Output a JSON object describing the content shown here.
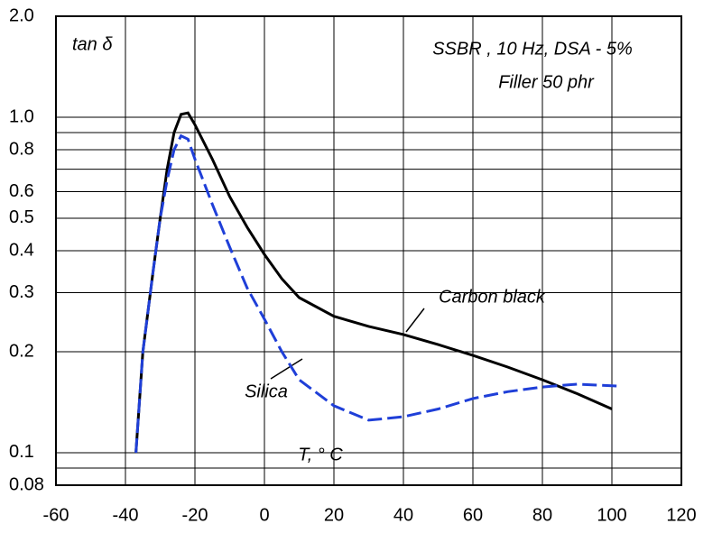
{
  "chart_data": {
    "type": "line",
    "y_label": "tan δ",
    "x_label": "T,  ° C",
    "annotations": [
      "SSBR , 10 Hz, DSA - 5%",
      "Filler 50 phr"
    ],
    "ylog": true,
    "grid": true,
    "xlim": [
      -60,
      120
    ],
    "xticks": [
      -60,
      -40,
      -20,
      0,
      20,
      40,
      60,
      80,
      100,
      120
    ],
    "ylim": [
      0.08,
      2.0
    ],
    "yticks": [
      {
        "value": 2,
        "label": "2.0"
      },
      {
        "value": 1,
        "label": "1.0"
      },
      0.8,
      0.6,
      0.5,
      0.4,
      0.3,
      0.2,
      0.1,
      0.08
    ],
    "yminor": [
      0.9,
      0.7,
      0.09
    ],
    "series": [
      {
        "name": "Carbon black",
        "color": "#000000",
        "dash": false,
        "x": [
          -37,
          -35,
          -32,
          -30,
          -28,
          -26,
          -24,
          -22,
          -20,
          -15,
          -10,
          -5,
          0,
          5,
          10,
          20,
          30,
          40,
          50,
          60,
          70,
          80,
          90,
          100
        ],
        "values": [
          0.1,
          0.2,
          0.35,
          0.5,
          0.7,
          0.9,
          1.02,
          1.03,
          0.95,
          0.75,
          0.58,
          0.47,
          0.39,
          0.33,
          0.29,
          0.255,
          0.238,
          0.225,
          0.21,
          0.195,
          0.18,
          0.165,
          0.15,
          0.135
        ]
      },
      {
        "name": "Silica",
        "color": "#1f3fd8",
        "dash": true,
        "x": [
          -37,
          -35,
          -32,
          -30,
          -28,
          -26,
          -24,
          -22,
          -20,
          -15,
          -10,
          -5,
          0,
          5,
          10,
          20,
          30,
          40,
          50,
          60,
          70,
          80,
          90,
          102
        ],
        "values": [
          0.1,
          0.2,
          0.35,
          0.5,
          0.65,
          0.8,
          0.88,
          0.86,
          0.75,
          0.55,
          0.41,
          0.31,
          0.25,
          0.2,
          0.165,
          0.138,
          0.125,
          0.128,
          0.135,
          0.145,
          0.152,
          0.157,
          0.16,
          0.158
        ]
      }
    ]
  }
}
